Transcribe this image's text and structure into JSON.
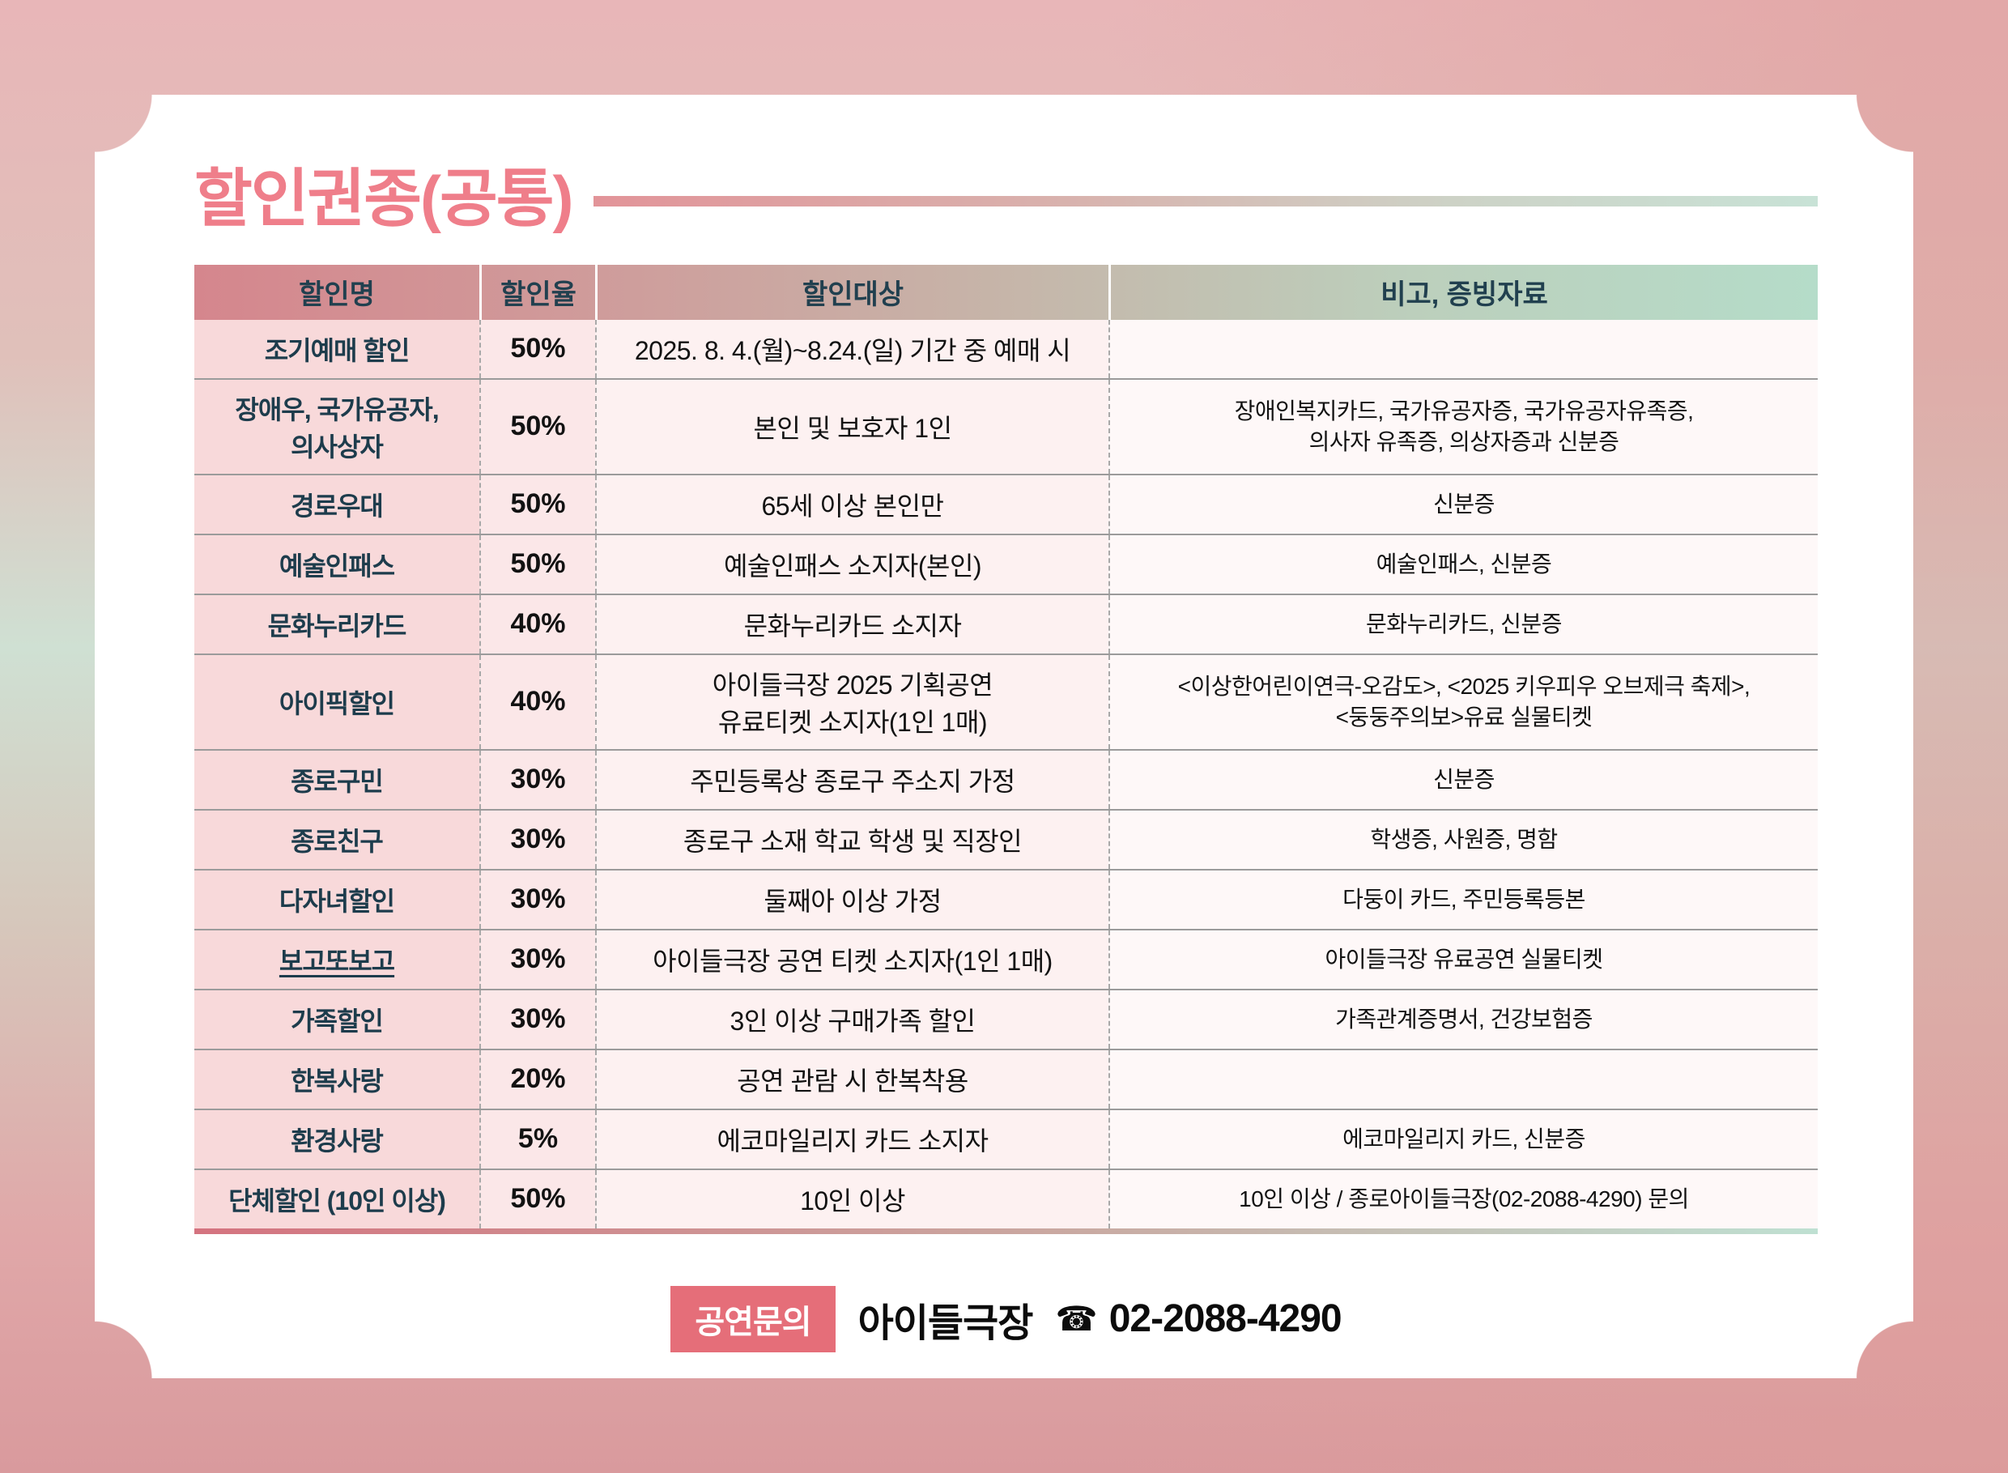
{
  "page": {
    "title": "할인권종(공통)"
  },
  "colors": {
    "title_pink": "#ef7e8a",
    "badge_bg": "#e56e79",
    "header_gradient_left": "#d5868d",
    "header_gradient_right": "#b5dcc9",
    "row_name_bg": "#f8d9da",
    "row_rate_bg": "#fbe7e8",
    "row_target_bg": "#fdf1f1",
    "row_note_bg": "#fef8f8",
    "table_bottom_border_left": "#d4737f",
    "table_bottom_border_right": "#bfe0d2"
  },
  "table": {
    "headers": [
      "할인명",
      "할인율",
      "할인대상",
      "비고, 증빙자료"
    ],
    "rows": [
      {
        "name": "조기예매 할인",
        "rate": "50%",
        "target": "2025. 8. 4.(월)~8.24.(일) 기간 중 예매 시",
        "note": "",
        "tall": false,
        "underline": false
      },
      {
        "name": "장애우, 국가유공자,\n의사상자",
        "rate": "50%",
        "target": "본인 및 보호자 1인",
        "note": "장애인복지카드, 국가유공자증, 국가유공자유족증,\n의사자 유족증, 의상자증과 신분증",
        "tall": true,
        "underline": false
      },
      {
        "name": "경로우대",
        "rate": "50%",
        "target": "65세 이상 본인만",
        "note": "신분증",
        "tall": false,
        "underline": false
      },
      {
        "name": "예술인패스",
        "rate": "50%",
        "target": "예술인패스 소지자(본인)",
        "note": "예술인패스, 신분증",
        "tall": false,
        "underline": false
      },
      {
        "name": "문화누리카드",
        "rate": "40%",
        "target": "문화누리카드 소지자",
        "note": "문화누리카드, 신분증",
        "tall": false,
        "underline": false
      },
      {
        "name": "아이픽할인",
        "rate": "40%",
        "target": "아이들극장 2025 기획공연\n유료티켓 소지자(1인 1매)",
        "note": "<이상한어린이연극-오감도>, <2025 키우피우 오브제극 축제>,\n<둥둥주의보>유료 실물티켓",
        "tall": true,
        "underline": false
      },
      {
        "name": "종로구민",
        "rate": "30%",
        "target": "주민등록상 종로구 주소지 가정",
        "note": "신분증",
        "tall": false,
        "underline": false
      },
      {
        "name": "종로친구",
        "rate": "30%",
        "target": "종로구 소재 학교 학생 및 직장인",
        "note": "학생증, 사원증, 명함",
        "tall": false,
        "underline": false
      },
      {
        "name": "다자녀할인",
        "rate": "30%",
        "target": "둘째아 이상 가정",
        "note": "다둥이 카드, 주민등록등본",
        "tall": false,
        "underline": false
      },
      {
        "name": "보고또보고",
        "rate": "30%",
        "target": "아이들극장 공연 티켓 소지자(1인 1매)",
        "note": "아이들극장 유료공연 실물티켓",
        "tall": false,
        "underline": true
      },
      {
        "name": "가족할인",
        "rate": "30%",
        "target": "3인 이상 구매가족 할인",
        "note": "가족관계증명서, 건강보험증",
        "tall": false,
        "underline": false
      },
      {
        "name": "한복사랑",
        "rate": "20%",
        "target": "공연 관람 시 한복착용",
        "note": "",
        "tall": false,
        "underline": false
      },
      {
        "name": "환경사랑",
        "rate": "5%",
        "target": "에코마일리지 카드 소지자",
        "note": "에코마일리지 카드, 신분증",
        "tall": false,
        "underline": false
      },
      {
        "name": "단체할인 (10인 이상)",
        "rate": "50%",
        "target": "10인 이상",
        "note": "10인 이상 / 종로아이들극장(02-2088-4290) 문의",
        "tall": false,
        "underline": false
      }
    ]
  },
  "footer": {
    "badge": "공연문의",
    "venue": "아이들극장",
    "phone_icon": "☎",
    "phone": "02-2088-4290"
  }
}
